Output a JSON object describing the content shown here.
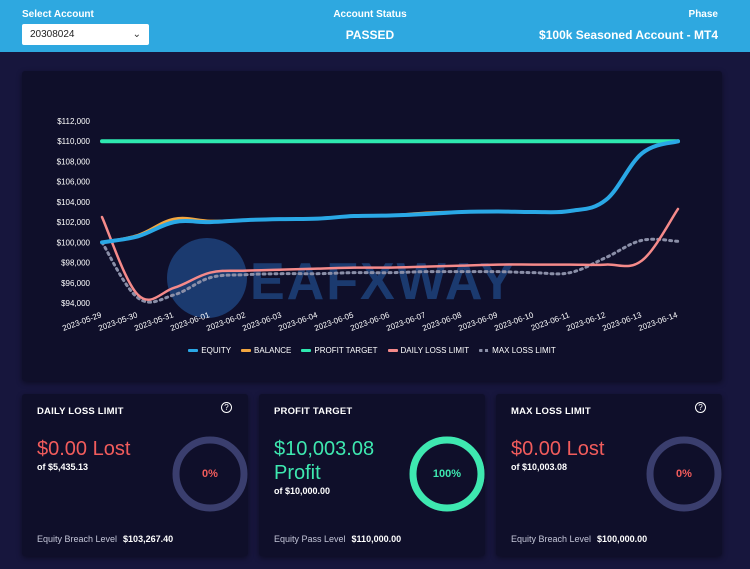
{
  "header": {
    "select_account_label": "Select Account",
    "account_value": "20308024",
    "status_label": "Account Status",
    "status_value": "PASSED",
    "phase_label": "Phase",
    "phase_value": "$100k Seasoned Account - MT4"
  },
  "watermark": "EAFXWAY",
  "colors": {
    "equity": "#2aa8e6",
    "balance": "#f2a640",
    "profit_target": "#2ee8b0",
    "daily_loss_limit": "#f58a8a",
    "max_loss_limit": "#8b8fa8",
    "loss_red": "#f25c5c",
    "profit_green": "#3ee8b0",
    "ring_track": "#3a3e6e"
  },
  "chart_data": {
    "type": "line",
    "x": [
      "2023-05-29",
      "2023-05-30",
      "2023-05-31",
      "2023-06-01",
      "2023-06-02",
      "2023-06-03",
      "2023-06-04",
      "2023-06-05",
      "2023-06-06",
      "2023-06-07",
      "2023-06-08",
      "2023-06-09",
      "2023-06-10",
      "2023-06-11",
      "2023-06-12",
      "2023-06-13",
      "2023-06-14"
    ],
    "y_ticks": [
      "$94,000",
      "$96,000",
      "$98,000",
      "$100,000",
      "$102,000",
      "$104,000",
      "$106,000",
      "$108,000",
      "$110,000",
      "$112,000"
    ],
    "ylim": [
      94000,
      112000
    ],
    "series": [
      {
        "name": "EQUITY",
        "values": [
          100000,
          100600,
          102000,
          102000,
          102200,
          102300,
          102350,
          102600,
          102650,
          102800,
          103000,
          103050,
          103000,
          103100,
          104200,
          108800,
          110000
        ]
      },
      {
        "name": "BALANCE",
        "values": [
          100000,
          100700,
          102300,
          102100,
          102200,
          102300,
          102350,
          102600,
          102650,
          102900,
          103000,
          103050,
          103000,
          103100,
          104200,
          108800,
          110000
        ]
      },
      {
        "name": "PROFIT TARGET",
        "values": [
          110000,
          110000,
          110000,
          110000,
          110000,
          110000,
          110000,
          110000,
          110000,
          110000,
          110000,
          110000,
          110000,
          110000,
          110000,
          110000,
          110000
        ]
      },
      {
        "name": "DAILY LOSS LIMIT",
        "values": [
          102500,
          94800,
          95500,
          97000,
          97200,
          97300,
          97400,
          97500,
          97500,
          97600,
          97700,
          97800,
          97800,
          97800,
          97800,
          98200,
          103300
        ]
      },
      {
        "name": "MAX LOSS LIMIT",
        "values": [
          100000,
          94500,
          94800,
          96500,
          96800,
          96900,
          96900,
          97000,
          97000,
          97100,
          97100,
          97100,
          97000,
          97000,
          98500,
          100200,
          100100
        ]
      }
    ],
    "grid": false,
    "legend": "bottom"
  },
  "cards": [
    {
      "title": "DAILY LOSS LIMIT",
      "main_line1": "$0.00 Lost",
      "main_line2": "",
      "sub": "of $5,435.13",
      "percent_label": "0%",
      "percent": 0,
      "foot_label": "Equity Breach Level",
      "foot_value": "$103,267.40",
      "help": "?"
    },
    {
      "title": "PROFIT TARGET",
      "main_line1": "$10,003.08",
      "main_line2": "Profit",
      "sub": "of $10,000.00",
      "percent_label": "100%",
      "percent": 100,
      "foot_label": "Equity Pass Level",
      "foot_value": "$110,000.00",
      "help": ""
    },
    {
      "title": "MAX LOSS LIMIT",
      "main_line1": "$0.00 Lost",
      "main_line2": "",
      "sub": "of $10,003.08",
      "percent_label": "0%",
      "percent": 0,
      "foot_label": "Equity Breach Level",
      "foot_value": "$100,000.00",
      "help": "?"
    }
  ]
}
